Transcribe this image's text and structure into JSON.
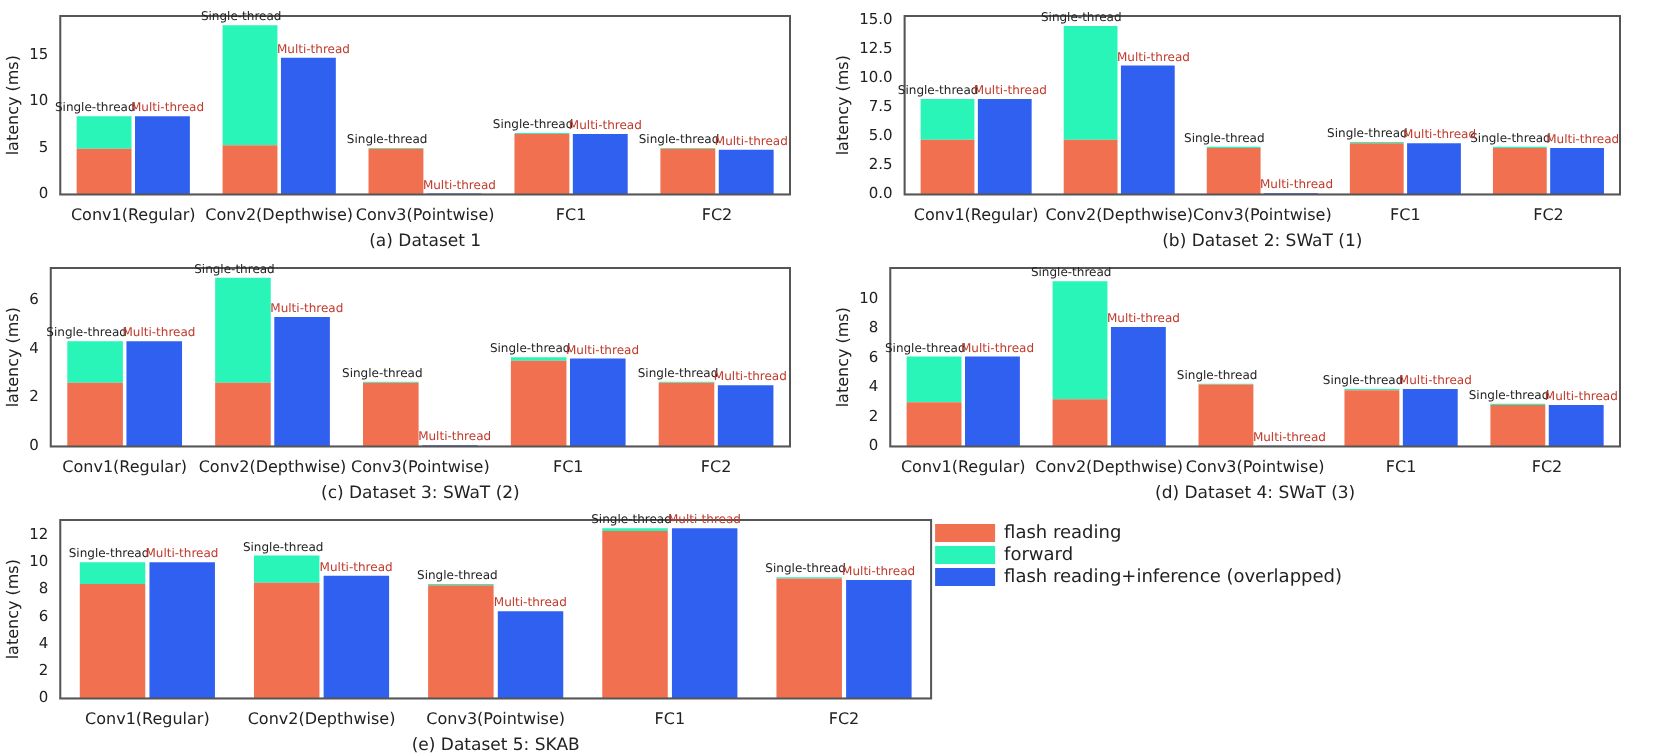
{
  "chart_data": [
    {
      "type": "bar",
      "xlabel": "(a) Dataset 1",
      "ylabel": "latency (ms)",
      "categories": [
        "Conv1(Regular)",
        "Conv2(Depthwise)",
        "Conv3(Pointwise)",
        "FC1",
        "FC2"
      ],
      "ylim": [
        0,
        19.2
      ],
      "yticks": [
        0,
        5,
        10,
        15
      ],
      "grid": false,
      "legend": false,
      "series": [
        {
          "color": "#f07050",
          "values": [
            4.9,
            5.3,
            4.9,
            6.5,
            4.9
          ]
        },
        {
          "color": "#2af5b8",
          "base": [
            4.9,
            5.3,
            4.9,
            6.5,
            4.9
          ],
          "values": [
            3.5,
            12.9,
            0.1,
            0.1,
            0.1
          ],
          "value_labels": [
            "Single-thread",
            "Single-thread",
            "Single-thread",
            "Single-thread",
            "Single-thread"
          ]
        },
        {
          "color": "#3060f0",
          "values": [
            8.4,
            14.7,
            0.1,
            6.5,
            4.8
          ],
          "value_labels": [
            "Multi-thread",
            "Multi-thread",
            "Multi-thread",
            "Multi-thread",
            "Multi-thread"
          ]
        }
      ]
    },
    {
      "type": "bar",
      "xlabel": "(b) Dataset 2: SWaT (1)",
      "ylabel": "latency (ms)",
      "categories": [
        "Conv1(Regular)",
        "Conv2(Depthwise)",
        "Conv3(Pointwise)",
        "FC1",
        "FC2"
      ],
      "ylim": [
        0,
        15.35
      ],
      "yticks": [
        {
          "value": 0,
          "label": "0.0"
        },
        {
          "value": 2.5,
          "label": "2.5"
        },
        {
          "value": 5,
          "label": "5.0"
        },
        {
          "value": 7.5,
          "label": "7.5"
        },
        {
          "value": 10,
          "label": "10.0"
        },
        {
          "value": 12.5,
          "label": "12.5"
        },
        {
          "value": 15,
          "label": "15.0"
        }
      ],
      "grid": false,
      "legend": false,
      "series": [
        {
          "color": "#f07050",
          "values": [
            4.7,
            4.7,
            4.0,
            4.4,
            4.0
          ]
        },
        {
          "color": "#2af5b8",
          "base": [
            4.7,
            4.7,
            4.0,
            4.4,
            4.0
          ],
          "values": [
            3.5,
            9.8,
            0.1,
            0.1,
            0.1
          ],
          "value_labels": [
            "Single-thread",
            "Single-thread",
            "Single-thread",
            "Single-thread",
            "Single-thread"
          ]
        },
        {
          "color": "#3060f0",
          "values": [
            8.2,
            11.1,
            0.1,
            4.4,
            4.0
          ],
          "value_labels": [
            "Multi-thread",
            "Multi-thread",
            "Multi-thread",
            "Multi-thread",
            "Multi-thread"
          ]
        }
      ]
    },
    {
      "type": "bar",
      "xlabel": "(c) Dataset 3: SWaT (2)",
      "ylabel": "latency (ms)",
      "categories": [
        "Conv1(Regular)",
        "Conv2(Depthwise)",
        "Conv3(Pointwise)",
        "FC1",
        "FC2"
      ],
      "ylim": [
        0,
        7.3
      ],
      "yticks": [
        0,
        2,
        4,
        6
      ],
      "grid": false,
      "legend": false,
      "series": [
        {
          "color": "#f07050",
          "values": [
            2.6,
            2.6,
            2.6,
            3.5,
            2.6
          ]
        },
        {
          "color": "#2af5b8",
          "base": [
            2.6,
            2.6,
            2.6,
            3.5,
            2.6
          ],
          "values": [
            1.7,
            4.3,
            0.05,
            0.15,
            0.05
          ],
          "value_labels": [
            "Single-thread",
            "Single-thread",
            "Single-thread",
            "Single-thread",
            "Single-thread"
          ]
        },
        {
          "color": "#3060f0",
          "values": [
            4.3,
            5.3,
            0.05,
            3.6,
            2.5
          ],
          "value_labels": [
            "Multi-thread",
            "Multi-thread",
            "Multi-thread",
            "Multi-thread",
            "Multi-thread"
          ]
        }
      ]
    },
    {
      "type": "bar",
      "xlabel": "(d) Dataset 4: SWaT (3)",
      "ylabel": "latency (ms)",
      "categories": [
        "Conv1(Regular)",
        "Conv2(Depthwise)",
        "Conv3(Pointwise)",
        "FC1",
        "FC2"
      ],
      "ylim": [
        0,
        12.1
      ],
      "yticks": [
        0,
        2,
        4,
        6,
        8,
        10
      ],
      "grid": false,
      "legend": false,
      "series": [
        {
          "color": "#f07050",
          "values": [
            3.0,
            3.2,
            4.2,
            3.8,
            2.8
          ]
        },
        {
          "color": "#2af5b8",
          "base": [
            3.0,
            3.2,
            4.2,
            3.8,
            2.8
          ],
          "values": [
            3.1,
            8.0,
            0.05,
            0.1,
            0.1
          ],
          "value_labels": [
            "Single-thread",
            "Single-thread",
            "Single-thread",
            "Single-thread",
            "Single-thread"
          ]
        },
        {
          "color": "#3060f0",
          "values": [
            6.1,
            8.1,
            0.05,
            3.9,
            2.8
          ],
          "value_labels": [
            "Multi-thread",
            "Multi-thread",
            "Multi-thread",
            "Multi-thread",
            "Multi-thread"
          ]
        }
      ]
    },
    {
      "type": "bar",
      "xlabel": "(e) Dataset 5: SKAB",
      "ylabel": "latency (ms)",
      "categories": [
        "Conv1(Regular)",
        "Conv2(Depthwise)",
        "Conv3(Pointwise)",
        "FC1",
        "FC2"
      ],
      "ylim": [
        0,
        13.1
      ],
      "yticks": [
        0,
        2,
        4,
        6,
        8,
        10,
        12
      ],
      "grid": false,
      "legend": "right",
      "series": [
        {
          "name": "flash reading",
          "color": "#f07050",
          "values": [
            8.4,
            8.5,
            8.3,
            12.3,
            8.8
          ]
        },
        {
          "name": "forward",
          "color": "#2af5b8",
          "base": [
            8.4,
            8.5,
            8.3,
            12.3,
            8.8
          ],
          "values": [
            1.6,
            2.0,
            0.1,
            0.2,
            0.1
          ],
          "value_labels": [
            "Single-thread",
            "Single-thread",
            "Single-thread",
            "Single-thread",
            "Single-thread"
          ]
        },
        {
          "name": "flash reading+inference (overlapped)",
          "color": "#3060f0",
          "values": [
            10.0,
            9.0,
            6.4,
            12.5,
            8.7
          ],
          "value_labels": [
            "Multi-thread",
            "Multi-thread",
            "Multi-thread",
            "Multi-thread",
            "Multi-thread"
          ]
        }
      ]
    }
  ]
}
